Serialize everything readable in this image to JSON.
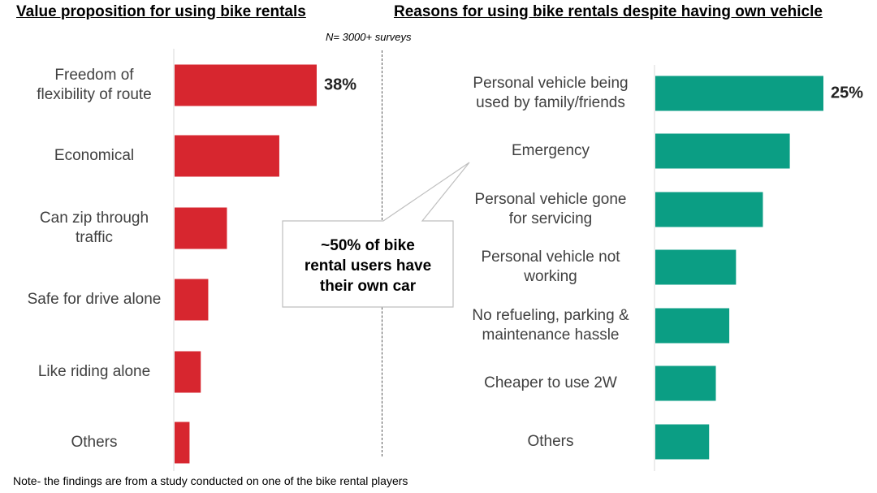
{
  "note": "Note- the findings are from a study conducted on one of the bike rental players",
  "sample_size": "N= 3000+ surveys",
  "callout": "~50% of bike\nrental users have\ntheir own car",
  "colors": {
    "left_bars": "#d7262f",
    "right_bars": "#0b9e84"
  },
  "chart_data": [
    {
      "type": "bar",
      "orientation": "horizontal",
      "title": "Value proposition for using bike rentals",
      "categories": [
        "Freedom of\nflexibility of route",
        "Economical",
        "Can zip through\ntraffic",
        "Safe for drive alone",
        "Like riding alone",
        "Others"
      ],
      "values": [
        38,
        28,
        14,
        9,
        7,
        4
      ],
      "data_labels": [
        "38%",
        "",
        "",
        "",
        "",
        ""
      ],
      "xlim": [
        0,
        40
      ],
      "grid": false,
      "unit": "%"
    },
    {
      "type": "bar",
      "orientation": "horizontal",
      "title": "Reasons for using bike rentals despite having own vehicle",
      "categories": [
        "Personal vehicle being\nused by family/friends",
        "Emergency",
        "Personal vehicle gone\nfor servicing",
        "Personal vehicle not\nworking",
        "No refueling, parking &\nmaintenance hassle",
        "Cheaper to use 2W",
        "Others"
      ],
      "values": [
        25,
        20,
        16,
        12,
        11,
        9,
        8
      ],
      "data_labels": [
        "25%",
        "",
        "",
        "",
        "",
        "",
        ""
      ],
      "xlim": [
        0,
        26
      ],
      "grid": false,
      "unit": "%"
    }
  ]
}
